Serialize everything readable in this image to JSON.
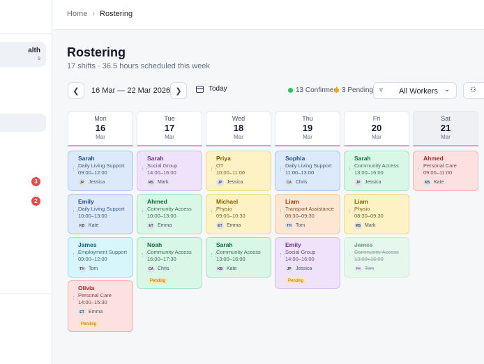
{
  "sidebar": {
    "org_name": "alth",
    "org_sub": "s",
    "badges": [
      "3",
      "2"
    ]
  },
  "breadcrumb": {
    "home": "Home",
    "current": "Rostering"
  },
  "header": {
    "title": "Rostering",
    "subtitle": "17 shifts · 36.5 hours scheduled this week"
  },
  "toolbar": {
    "date_range": "16 Mar — 22 Mar 2026",
    "today_label": "Today",
    "confirmed_label": "13 Confirmed",
    "pending_label": "3 Pending",
    "workers_filter": "All Workers",
    "icons": {
      "prev": "chevron-left-icon",
      "next": "chevron-right-icon",
      "calendar": "calendar-icon",
      "filter": "filter-icon",
      "people": "users-icon"
    }
  },
  "colors": {
    "confirmed": "#22c55e",
    "pending": "#f5a623",
    "accent": "#d7a0c8",
    "badge": "#e54b4b"
  },
  "days": [
    {
      "name": "Mon",
      "num": "16",
      "month": "Mar"
    },
    {
      "name": "Tue",
      "num": "17",
      "month": "Mar"
    },
    {
      "name": "Wed",
      "num": "18",
      "month": "Mar"
    },
    {
      "name": "Thu",
      "num": "19",
      "month": "Mar"
    },
    {
      "name": "Fri",
      "num": "20",
      "month": "Mar"
    },
    {
      "name": "Sat",
      "num": "21",
      "month": "Mar"
    }
  ],
  "shifts": {
    "mon": [
      {
        "name": "Sarah",
        "type": "Daily Living Support",
        "time": "09:00–12:00",
        "initials": "JP",
        "worker": "Jessica"
      },
      {
        "name": "Emily",
        "type": "Daily Living Support",
        "time": "10:00–13:00",
        "initials": "KB",
        "worker": "Kate"
      },
      {
        "name": "James",
        "type": "Employment Support",
        "time": "09:00–12:00",
        "initials": "TH",
        "worker": "Tom"
      },
      {
        "name": "Olivia",
        "type": "Personal Care",
        "time": "14:00–15:30",
        "initials": "ET",
        "worker": "Emma",
        "status": "Pending"
      }
    ],
    "tue": [
      {
        "name": "Sarah",
        "type": "Social Group",
        "time": "14:00–16:00",
        "initials": "MS",
        "worker": "Mark"
      },
      {
        "name": "Ahmed",
        "type": "Community Access",
        "time": "10:00–13:00",
        "initials": "ET",
        "worker": "Emma"
      },
      {
        "name": "Noah",
        "type": "Community Access",
        "time": "16:00–17:30",
        "initials": "CA",
        "worker": "Chris",
        "status": "Pending"
      }
    ],
    "wed": [
      {
        "name": "Priya",
        "type": "OT",
        "time": "10:00–11:00",
        "initials": "JP",
        "worker": "Jessica"
      },
      {
        "name": "Michael",
        "type": "Physio",
        "time": "09:00–10:30",
        "initials": "ET",
        "worker": "Emma"
      },
      {
        "name": "Sarah",
        "type": "Community Access",
        "time": "13:00–16:00",
        "initials": "KB",
        "worker": "Kate"
      }
    ],
    "thu": [
      {
        "name": "Sophia",
        "type": "Daily Living Support",
        "time": "11:00–13:00",
        "initials": "CA",
        "worker": "Chris"
      },
      {
        "name": "Liam",
        "type": "Transport Assistance",
        "time": "08:30–09:30",
        "initials": "TH",
        "worker": "Tom"
      },
      {
        "name": "Emily",
        "type": "Social Group",
        "time": "14:00–16:00",
        "initials": "JP",
        "worker": "Jessica",
        "status": "Pending"
      }
    ],
    "fri": [
      {
        "name": "Sarah",
        "type": "Community Access",
        "time": "13:00–16:00",
        "initials": "JP",
        "worker": "Jessica"
      },
      {
        "name": "Liam",
        "type": "Physio",
        "time": "08:30–09:30",
        "initials": "MS",
        "worker": "Mark"
      },
      {
        "name": "James",
        "type": "Community Access",
        "time": "13:00–16:00",
        "initials": "TH",
        "worker": "Tom",
        "status": "Cancelled"
      }
    ],
    "sat": [
      {
        "name": "Ahmed",
        "type": "Personal Care",
        "time": "09:00–11:00",
        "initials": "KB",
        "worker": "Kate"
      }
    ]
  }
}
